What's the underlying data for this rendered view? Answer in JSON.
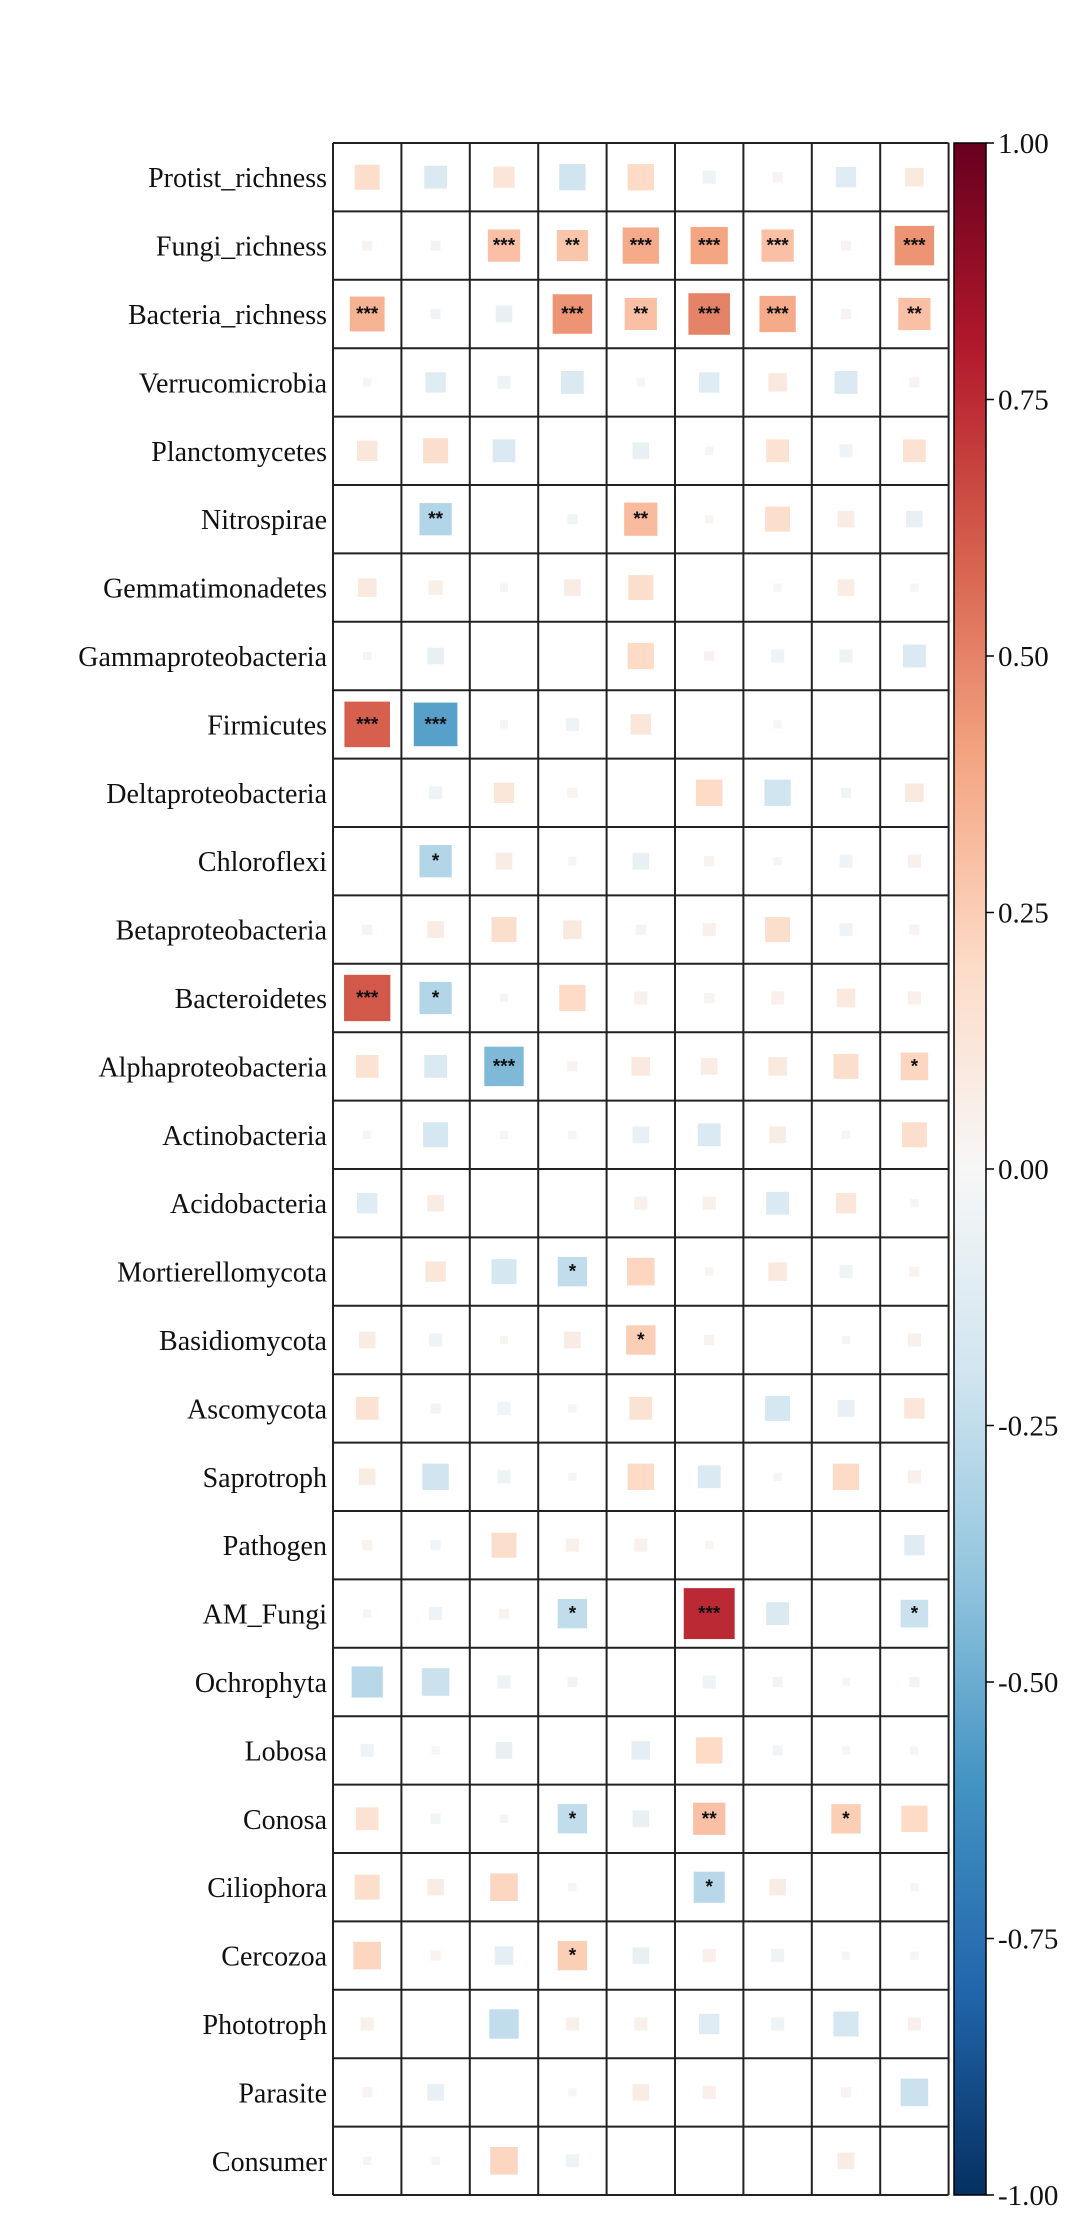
{
  "chart_data": {
    "type": "heatmap",
    "title": "",
    "xlabel": "",
    "ylabel": "",
    "n_columns": 9,
    "rows": [
      "Protist_richness",
      "Fungi_richness",
      "Bacteria_richness",
      "Verrucomicrobia",
      "Planctomycetes",
      "Nitrospirae",
      "Gemmatimonadetes",
      "Gammaproteobacteria",
      "Firmicutes",
      "Deltaproteobacteria",
      "Chloroflexi",
      "Betaproteobacteria",
      "Bacteroidetes",
      "Alphaproteobacteria",
      "Actinobacteria",
      "Acidobacteria",
      "Mortierellomycota",
      "Basidiomycota",
      "Ascomycota",
      "Saprotroph",
      "Pathogen",
      "AM_Fungi",
      "Ochrophyta",
      "Lobosa",
      "Conosa",
      "Ciliophora",
      "Cercozoa",
      "Phototroph",
      "Parasite",
      "Consumer"
    ],
    "values": [
      [
        0.18,
        -0.15,
        0.13,
        -0.2,
        0.2,
        -0.05,
        0.03,
        -0.12,
        0.1
      ],
      [
        0.03,
        -0.03,
        0.3,
        0.28,
        0.38,
        0.4,
        0.3,
        0.03,
        0.45
      ],
      [
        0.35,
        -0.03,
        -0.08,
        0.45,
        0.3,
        0.5,
        0.38,
        0.03,
        0.3
      ],
      [
        0.02,
        -0.12,
        -0.05,
        -0.15,
        0.02,
        -0.12,
        0.1,
        -0.15,
        0.03
      ],
      [
        0.12,
        0.18,
        -0.15,
        0.0,
        -0.08,
        0.02,
        0.15,
        -0.05,
        0.15
      ],
      [
        0.0,
        -0.3,
        0.0,
        -0.03,
        0.32,
        0.02,
        0.18,
        0.08,
        -0.08
      ],
      [
        0.1,
        0.06,
        0.02,
        0.08,
        0.18,
        0.0,
        0.02,
        0.08,
        0.02
      ],
      [
        0.02,
        -0.08,
        0.0,
        0.0,
        0.2,
        0.03,
        -0.05,
        -0.05,
        -0.15
      ],
      [
        0.6,
        -0.55,
        0.02,
        -0.05,
        0.12,
        0.0,
        0.02,
        0.0,
        0.0
      ],
      [
        0.0,
        -0.05,
        0.12,
        0.03,
        0.0,
        0.2,
        -0.2,
        -0.03,
        0.1
      ],
      [
        0.0,
        -0.3,
        0.08,
        0.02,
        -0.08,
        0.03,
        0.02,
        -0.05,
        0.05
      ],
      [
        0.03,
        0.08,
        0.18,
        0.1,
        0.03,
        0.05,
        0.18,
        -0.05,
        0.03
      ],
      [
        0.62,
        -0.3,
        0.02,
        0.2,
        0.05,
        0.03,
        0.05,
        0.1,
        0.05
      ],
      [
        0.15,
        -0.15,
        -0.45,
        0.03,
        0.1,
        0.08,
        0.1,
        0.18,
        0.22
      ],
      [
        0.02,
        -0.18,
        0.02,
        0.02,
        -0.08,
        -0.15,
        0.08,
        0.02,
        0.18
      ],
      [
        -0.12,
        0.08,
        0.0,
        0.0,
        0.05,
        0.05,
        -0.15,
        0.12,
        0.02
      ],
      [
        0.0,
        0.12,
        -0.18,
        -0.25,
        0.22,
        0.02,
        0.1,
        -0.05,
        0.03
      ],
      [
        0.08,
        -0.05,
        0.02,
        0.08,
        0.25,
        0.03,
        0.0,
        0.02,
        0.05
      ],
      [
        0.15,
        -0.03,
        -0.05,
        0.02,
        0.15,
        0.0,
        -0.18,
        -0.08,
        0.12
      ],
      [
        0.08,
        -0.2,
        -0.05,
        -0.02,
        0.2,
        -0.15,
        0.02,
        0.2,
        0.05
      ],
      [
        0.03,
        -0.03,
        0.18,
        0.05,
        0.05,
        0.02,
        0.0,
        0.0,
        -0.12
      ],
      [
        0.02,
        -0.05,
        0.03,
        -0.25,
        0.0,
        0.75,
        -0.15,
        0.0,
        -0.22
      ],
      [
        -0.28,
        -0.22,
        -0.05,
        -0.03,
        0.0,
        -0.05,
        -0.03,
        -0.02,
        -0.03
      ],
      [
        -0.05,
        0.02,
        -0.08,
        0.0,
        -0.1,
        0.2,
        -0.03,
        0.02,
        0.02
      ],
      [
        0.15,
        -0.03,
        0.02,
        -0.25,
        -0.08,
        0.3,
        0.0,
        0.25,
        0.2
      ],
      [
        0.18,
        0.08,
        0.22,
        0.02,
        0.0,
        -0.28,
        0.08,
        0.0,
        0.02
      ],
      [
        0.22,
        0.03,
        -0.1,
        0.25,
        -0.08,
        0.05,
        -0.05,
        0.02,
        0.02
      ],
      [
        0.05,
        0.0,
        -0.25,
        0.05,
        0.05,
        -0.12,
        -0.05,
        -0.18,
        0.05
      ],
      [
        0.03,
        -0.08,
        0.0,
        0.02,
        0.08,
        0.05,
        0.0,
        0.03,
        -0.22
      ],
      [
        0.02,
        0.02,
        0.22,
        -0.05,
        0.0,
        0.0,
        0.0,
        0.08,
        0.0
      ]
    ],
    "significance": [
      [
        "",
        "",
        "",
        "",
        "",
        "",
        "",
        "",
        ""
      ],
      [
        "",
        "",
        "***",
        "**",
        "***",
        "***",
        "***",
        "",
        "***"
      ],
      [
        "***",
        "",
        "",
        "***",
        "**",
        "***",
        "***",
        "",
        "**"
      ],
      [
        "",
        "",
        "",
        "",
        "",
        "",
        "",
        "",
        ""
      ],
      [
        "",
        "",
        "",
        "",
        "",
        "",
        "",
        "",
        ""
      ],
      [
        "",
        "**",
        "",
        "",
        "**",
        "",
        "",
        "",
        ""
      ],
      [
        "",
        "",
        "",
        "",
        "",
        "",
        "",
        "",
        ""
      ],
      [
        "",
        "",
        "",
        "",
        "",
        "",
        "",
        "",
        ""
      ],
      [
        "***",
        "***",
        "",
        "",
        "",
        "",
        "",
        "",
        ""
      ],
      [
        "",
        "",
        "",
        "",
        "",
        "",
        "",
        "",
        ""
      ],
      [
        "",
        "*",
        "",
        "",
        "",
        "",
        "",
        "",
        ""
      ],
      [
        "",
        "",
        "",
        "",
        "",
        "",
        "",
        "",
        ""
      ],
      [
        "***",
        "*",
        "",
        "",
        "",
        "",
        "",
        "",
        ""
      ],
      [
        "",
        "",
        "***",
        "",
        "",
        "",
        "",
        "",
        "*"
      ],
      [
        "",
        "",
        "",
        "",
        "",
        "",
        "",
        "",
        ""
      ],
      [
        "",
        "",
        "",
        "",
        "",
        "",
        "",
        "",
        ""
      ],
      [
        "",
        "",
        "",
        "*",
        "",
        "",
        "",
        "",
        ""
      ],
      [
        "",
        "",
        "",
        "",
        "*",
        "",
        "",
        "",
        ""
      ],
      [
        "",
        "",
        "",
        "",
        "",
        "",
        "",
        "",
        ""
      ],
      [
        "",
        "",
        "",
        "",
        "",
        "",
        "",
        "",
        ""
      ],
      [
        "",
        "",
        "",
        "",
        "",
        "",
        "",
        "",
        ""
      ],
      [
        "",
        "",
        "",
        "*",
        "",
        "***",
        "",
        "",
        "*"
      ],
      [
        "",
        "",
        "",
        "",
        "",
        "",
        "",
        "",
        ""
      ],
      [
        "",
        "",
        "",
        "",
        "",
        "",
        "",
        "",
        ""
      ],
      [
        "",
        "",
        "",
        "*",
        "",
        "**",
        "",
        "*",
        ""
      ],
      [
        "",
        "",
        "",
        "",
        "",
        "*",
        "",
        "",
        ""
      ],
      [
        "",
        "",
        "",
        "*",
        "",
        "",
        "",
        "",
        ""
      ],
      [
        "",
        "",
        "",
        "",
        "",
        "",
        "",
        "",
        ""
      ],
      [
        "",
        "",
        "",
        "",
        "",
        "",
        "",
        "",
        ""
      ],
      [
        "",
        "",
        "",
        "",
        "",
        "",
        "",
        "",
        ""
      ]
    ],
    "colorbar": {
      "vmin": -1.0,
      "vmax": 1.0,
      "ticks": [
        "1.00",
        "0.75",
        "0.50",
        "0.25",
        "0.00",
        "-0.25",
        "-0.50",
        "-0.75",
        "-1.00"
      ],
      "tick_values": [
        1.0,
        0.75,
        0.5,
        0.25,
        0.0,
        -0.25,
        -0.5,
        -0.75,
        -1.0
      ],
      "colormap": "RdBu_r",
      "stops": [
        "#053061",
        "#2166ac",
        "#4393c3",
        "#92c5de",
        "#d1e5f0",
        "#f7f7f7",
        "#fddbc7",
        "#f4a582",
        "#d6604d",
        "#b2182b",
        "#67001f"
      ]
    },
    "grid": true,
    "marker": "square scaled by magnitude"
  }
}
